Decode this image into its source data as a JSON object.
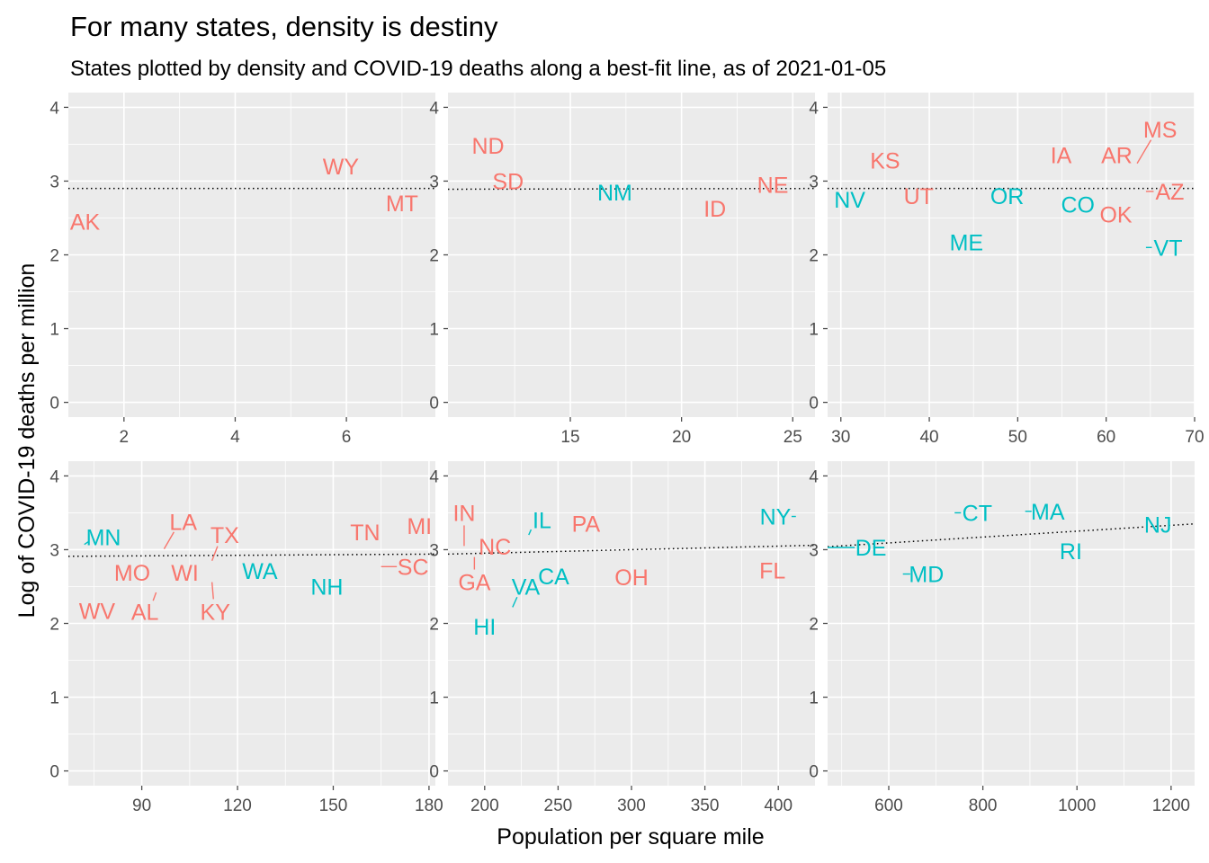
{
  "colors": {
    "panel_bg": "#EBEBEB",
    "grid": "#FFFFFF",
    "tick": "#4D4D4D",
    "red_states": "#F8766D",
    "blue_states": "#00BFC4",
    "fit_line": "#000000"
  },
  "chart_data": {
    "type": "scatter",
    "title": "For many states, density is destiny",
    "subtitle": "States plotted by density and COVID-19 deaths along a best-fit line, as of 2021-01-05",
    "xlabel": "Population per square mile",
    "ylabel": "Log of COVID-19 deaths per million",
    "grid": true,
    "legend": "none",
    "y_range": [
      -0.2,
      4.2
    ],
    "y_ticks": [
      0,
      1,
      2,
      3,
      4
    ],
    "panels": [
      {
        "x_range": [
          1.0,
          7.6
        ],
        "x_ticks": [
          2,
          4,
          6
        ],
        "fit": [
          [
            1.0,
            2.9
          ],
          [
            7.6,
            2.9
          ]
        ],
        "points": [
          {
            "label": "AK",
            "x": 1.3,
            "y": 2.45,
            "group": "red"
          },
          {
            "label": "WY",
            "x": 5.9,
            "y": 3.2,
            "group": "red"
          },
          {
            "label": "MT",
            "x": 7.0,
            "y": 2.7,
            "group": "red"
          }
        ]
      },
      {
        "x_range": [
          9.5,
          26.0
        ],
        "x_ticks": [
          15,
          20,
          25
        ],
        "fit": [
          [
            9.5,
            2.89
          ],
          [
            26.0,
            2.9
          ]
        ],
        "points": [
          {
            "label": "ND",
            "x": 11.3,
            "y": 3.48,
            "group": "red"
          },
          {
            "label": "SD",
            "x": 12.2,
            "y": 3.0,
            "group": "red"
          },
          {
            "label": "NM",
            "x": 17.0,
            "y": 2.85,
            "group": "blue"
          },
          {
            "label": "ID",
            "x": 21.5,
            "y": 2.63,
            "group": "red"
          },
          {
            "label": "NE",
            "x": 24.1,
            "y": 2.95,
            "group": "red"
          }
        ]
      },
      {
        "x_range": [
          28.5,
          70.0
        ],
        "x_ticks": [
          30,
          40,
          50,
          60,
          70
        ],
        "fit": [
          [
            28.5,
            2.9
          ],
          [
            70.0,
            2.9
          ]
        ],
        "points": [
          {
            "label": "KS",
            "x": 35.0,
            "y": 3.28,
            "group": "red"
          },
          {
            "label": "NV",
            "x": 31.0,
            "y": 2.75,
            "group": "blue"
          },
          {
            "label": "UT",
            "x": 38.8,
            "y": 2.8,
            "group": "red"
          },
          {
            "label": "ME",
            "x": 44.2,
            "y": 2.17,
            "group": "blue"
          },
          {
            "label": "OR",
            "x": 48.8,
            "y": 2.8,
            "group": "blue"
          },
          {
            "label": "IA",
            "x": 54.9,
            "y": 3.35,
            "group": "red"
          },
          {
            "label": "CO",
            "x": 56.8,
            "y": 2.68,
            "group": "blue"
          },
          {
            "label": "AR",
            "x": 61.2,
            "y": 3.35,
            "group": "red"
          },
          {
            "label": "OK",
            "x": 61.1,
            "y": 2.55,
            "group": "red"
          },
          {
            "label": "MS",
            "x": 63.5,
            "y": 3.24,
            "group": "red",
            "tx": 66.1,
            "ty": 3.7
          },
          {
            "label": "AZ",
            "x": 64.5,
            "y": 2.86,
            "group": "red",
            "tx": 67.2,
            "ty": 2.86
          },
          {
            "label": "VT",
            "x": 64.5,
            "y": 2.1,
            "group": "blue",
            "tx": 67.0,
            "ty": 2.1
          }
        ]
      },
      {
        "x_range": [
          67.0,
          182.0
        ],
        "x_ticks": [
          90,
          120,
          150,
          180
        ],
        "fit": [
          [
            67.0,
            2.91
          ],
          [
            182.0,
            2.94
          ]
        ],
        "points": [
          {
            "label": "MN",
            "x": 72.0,
            "y": 3.07,
            "group": "blue",
            "tx": 78.0,
            "ty": 3.17
          },
          {
            "label": "MO",
            "x": 87.0,
            "y": 2.69,
            "group": "red"
          },
          {
            "label": "WV",
            "x": 76.0,
            "y": 2.37,
            "group": "red",
            "tx": 76.0,
            "ty": 2.17
          },
          {
            "label": "LA",
            "x": 97.0,
            "y": 3.01,
            "group": "red",
            "tx": 103.0,
            "ty": 3.38
          },
          {
            "label": "AL",
            "x": 94.5,
            "y": 2.42,
            "group": "red",
            "tx": 91.0,
            "ty": 2.16
          },
          {
            "label": "WI",
            "x": 106.0,
            "y": 2.69,
            "group": "red",
            "tx": 103.5,
            "ty": 2.69
          },
          {
            "label": "TX",
            "x": 112.0,
            "y": 2.85,
            "group": "red",
            "tx": 116.0,
            "ty": 3.2
          },
          {
            "label": "KY",
            "x": 112.0,
            "y": 2.56,
            "group": "red",
            "tx": 113.0,
            "ty": 2.16
          },
          {
            "label": "WA",
            "x": 124.0,
            "y": 2.71,
            "group": "blue",
            "tx": 127.0,
            "ty": 2.71
          },
          {
            "label": "NH",
            "x": 148.0,
            "y": 2.5,
            "group": "blue"
          },
          {
            "label": "TN",
            "x": 164.0,
            "y": 3.24,
            "group": "red",
            "tx": 160.0,
            "ty": 3.24
          },
          {
            "label": "MI",
            "x": 175.0,
            "y": 3.32,
            "group": "red",
            "tx": 177.0,
            "ty": 3.32
          },
          {
            "label": "SC",
            "x": 165.0,
            "y": 2.77,
            "group": "red",
            "tx": 175.0,
            "ty": 2.77
          }
        ]
      },
      {
        "x_range": [
          175.0,
          425.0
        ],
        "x_ticks": [
          200,
          250,
          300,
          350,
          400
        ],
        "fit": [
          [
            175.0,
            2.94
          ],
          [
            425.0,
            3.06
          ]
        ],
        "points": [
          {
            "label": "IN",
            "x": 186.0,
            "y": 3.05,
            "group": "red",
            "tx": 186.0,
            "ty": 3.5
          },
          {
            "label": "NC",
            "x": 210.0,
            "y": 2.9,
            "group": "red",
            "tx": 207.0,
            "ty": 3.04
          },
          {
            "label": "GA",
            "x": 193.0,
            "y": 2.9,
            "group": "red",
            "tx": 193.0,
            "ty": 2.56
          },
          {
            "label": "IL",
            "x": 230.0,
            "y": 3.2,
            "group": "blue",
            "tx": 239.0,
            "ty": 3.4
          },
          {
            "label": "PA",
            "x": 280.0,
            "y": 3.35,
            "group": "red",
            "tx": 269.0,
            "ty": 3.35
          },
          {
            "label": "CA",
            "x": 246.0,
            "y": 2.64,
            "group": "blue",
            "tx": 247.0,
            "ty": 2.64
          },
          {
            "label": "VA",
            "x": 219.0,
            "y": 2.22,
            "group": "blue",
            "tx": 228.0,
            "ty": 2.5
          },
          {
            "label": "HI",
            "x": 212.0,
            "y": 2.03,
            "group": "blue",
            "tx": 200.0,
            "ty": 1.96
          },
          {
            "label": "OH",
            "x": 288.0,
            "y": 2.65,
            "group": "red",
            "tx": 300.0,
            "ty": 2.63
          },
          {
            "label": "NY",
            "x": 412.0,
            "y": 3.45,
            "group": "blue",
            "tx": 398.0,
            "ty": 3.45
          },
          {
            "label": "FL",
            "x": 400.0,
            "y": 2.72,
            "group": "red",
            "tx": 396.0,
            "ty": 2.72
          }
        ]
      },
      {
        "x_range": [
          470.0,
          1250.0
        ],
        "x_ticks": [
          600,
          800,
          1000,
          1200
        ],
        "fit": [
          [
            470.0,
            3.04
          ],
          [
            1250.0,
            3.35
          ]
        ],
        "points": [
          {
            "label": "DE",
            "x": 460.0,
            "y": 3.03,
            "group": "blue",
            "tx": 562.0,
            "ty": 3.03
          },
          {
            "label": "MD",
            "x": 630.0,
            "y": 2.67,
            "group": "blue",
            "tx": 680.0,
            "ty": 2.67
          },
          {
            "label": "CT",
            "x": 740.0,
            "y": 3.5,
            "group": "blue",
            "tx": 788.0,
            "ty": 3.5
          },
          {
            "label": "MA",
            "x": 890.0,
            "y": 3.52,
            "group": "blue",
            "tx": 938.0,
            "ty": 3.52
          },
          {
            "label": "RI",
            "x": 1020.0,
            "y": 2.98,
            "group": "blue",
            "tx": 987.0,
            "ty": 2.98
          },
          {
            "label": "NJ",
            "x": 1195.0,
            "y": 3.34,
            "group": "blue",
            "tx": 1172.0,
            "ty": 3.34
          }
        ]
      }
    ]
  }
}
